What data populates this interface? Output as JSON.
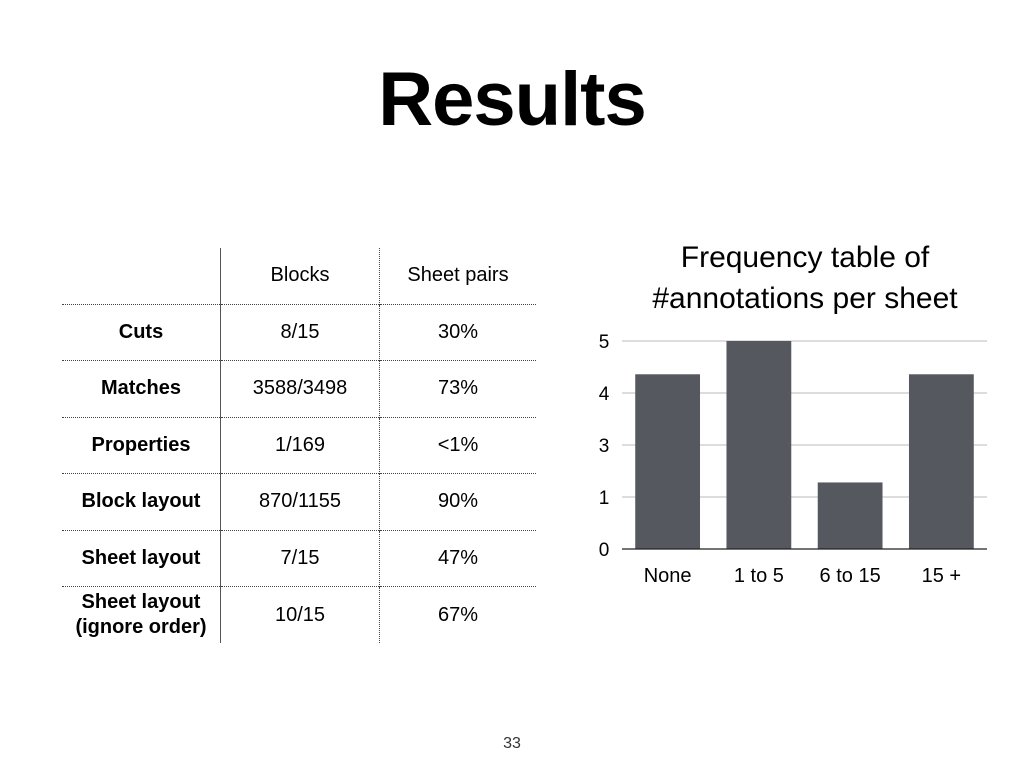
{
  "slide": {
    "title": "Results",
    "page_number": "33"
  },
  "table": {
    "headers": [
      "",
      "Blocks",
      "Sheet pairs"
    ],
    "rows": [
      {
        "label": "Cuts",
        "blocks": "8/15",
        "sheet_pairs": "30%"
      },
      {
        "label": "Matches",
        "blocks": "3588/3498",
        "sheet_pairs": "73%"
      },
      {
        "label": "Properties",
        "blocks": "1/169",
        "sheet_pairs": "<1%"
      },
      {
        "label": "Block layout",
        "blocks": "870/1155",
        "sheet_pairs": "90%"
      },
      {
        "label": "Sheet layout",
        "blocks": "7/15",
        "sheet_pairs": "47%"
      },
      {
        "label": "Sheet layout\n(ignore order)",
        "blocks": "10/15",
        "sheet_pairs": "67%"
      }
    ]
  },
  "chart_data": {
    "type": "bar",
    "title_lines": [
      "Frequency table of",
      "#annotations per sheet"
    ],
    "categories": [
      "None",
      "1 to 5",
      "6 to 15",
      "15 +"
    ],
    "values": [
      4.2,
      5,
      1.6,
      4.2
    ],
    "y_tick_labels": [
      "0",
      "1",
      "3",
      "4",
      "5"
    ],
    "ylim": [
      0,
      5
    ],
    "grid": true,
    "bar_color": "#55585e",
    "grid_color": "#bbbbbb"
  }
}
